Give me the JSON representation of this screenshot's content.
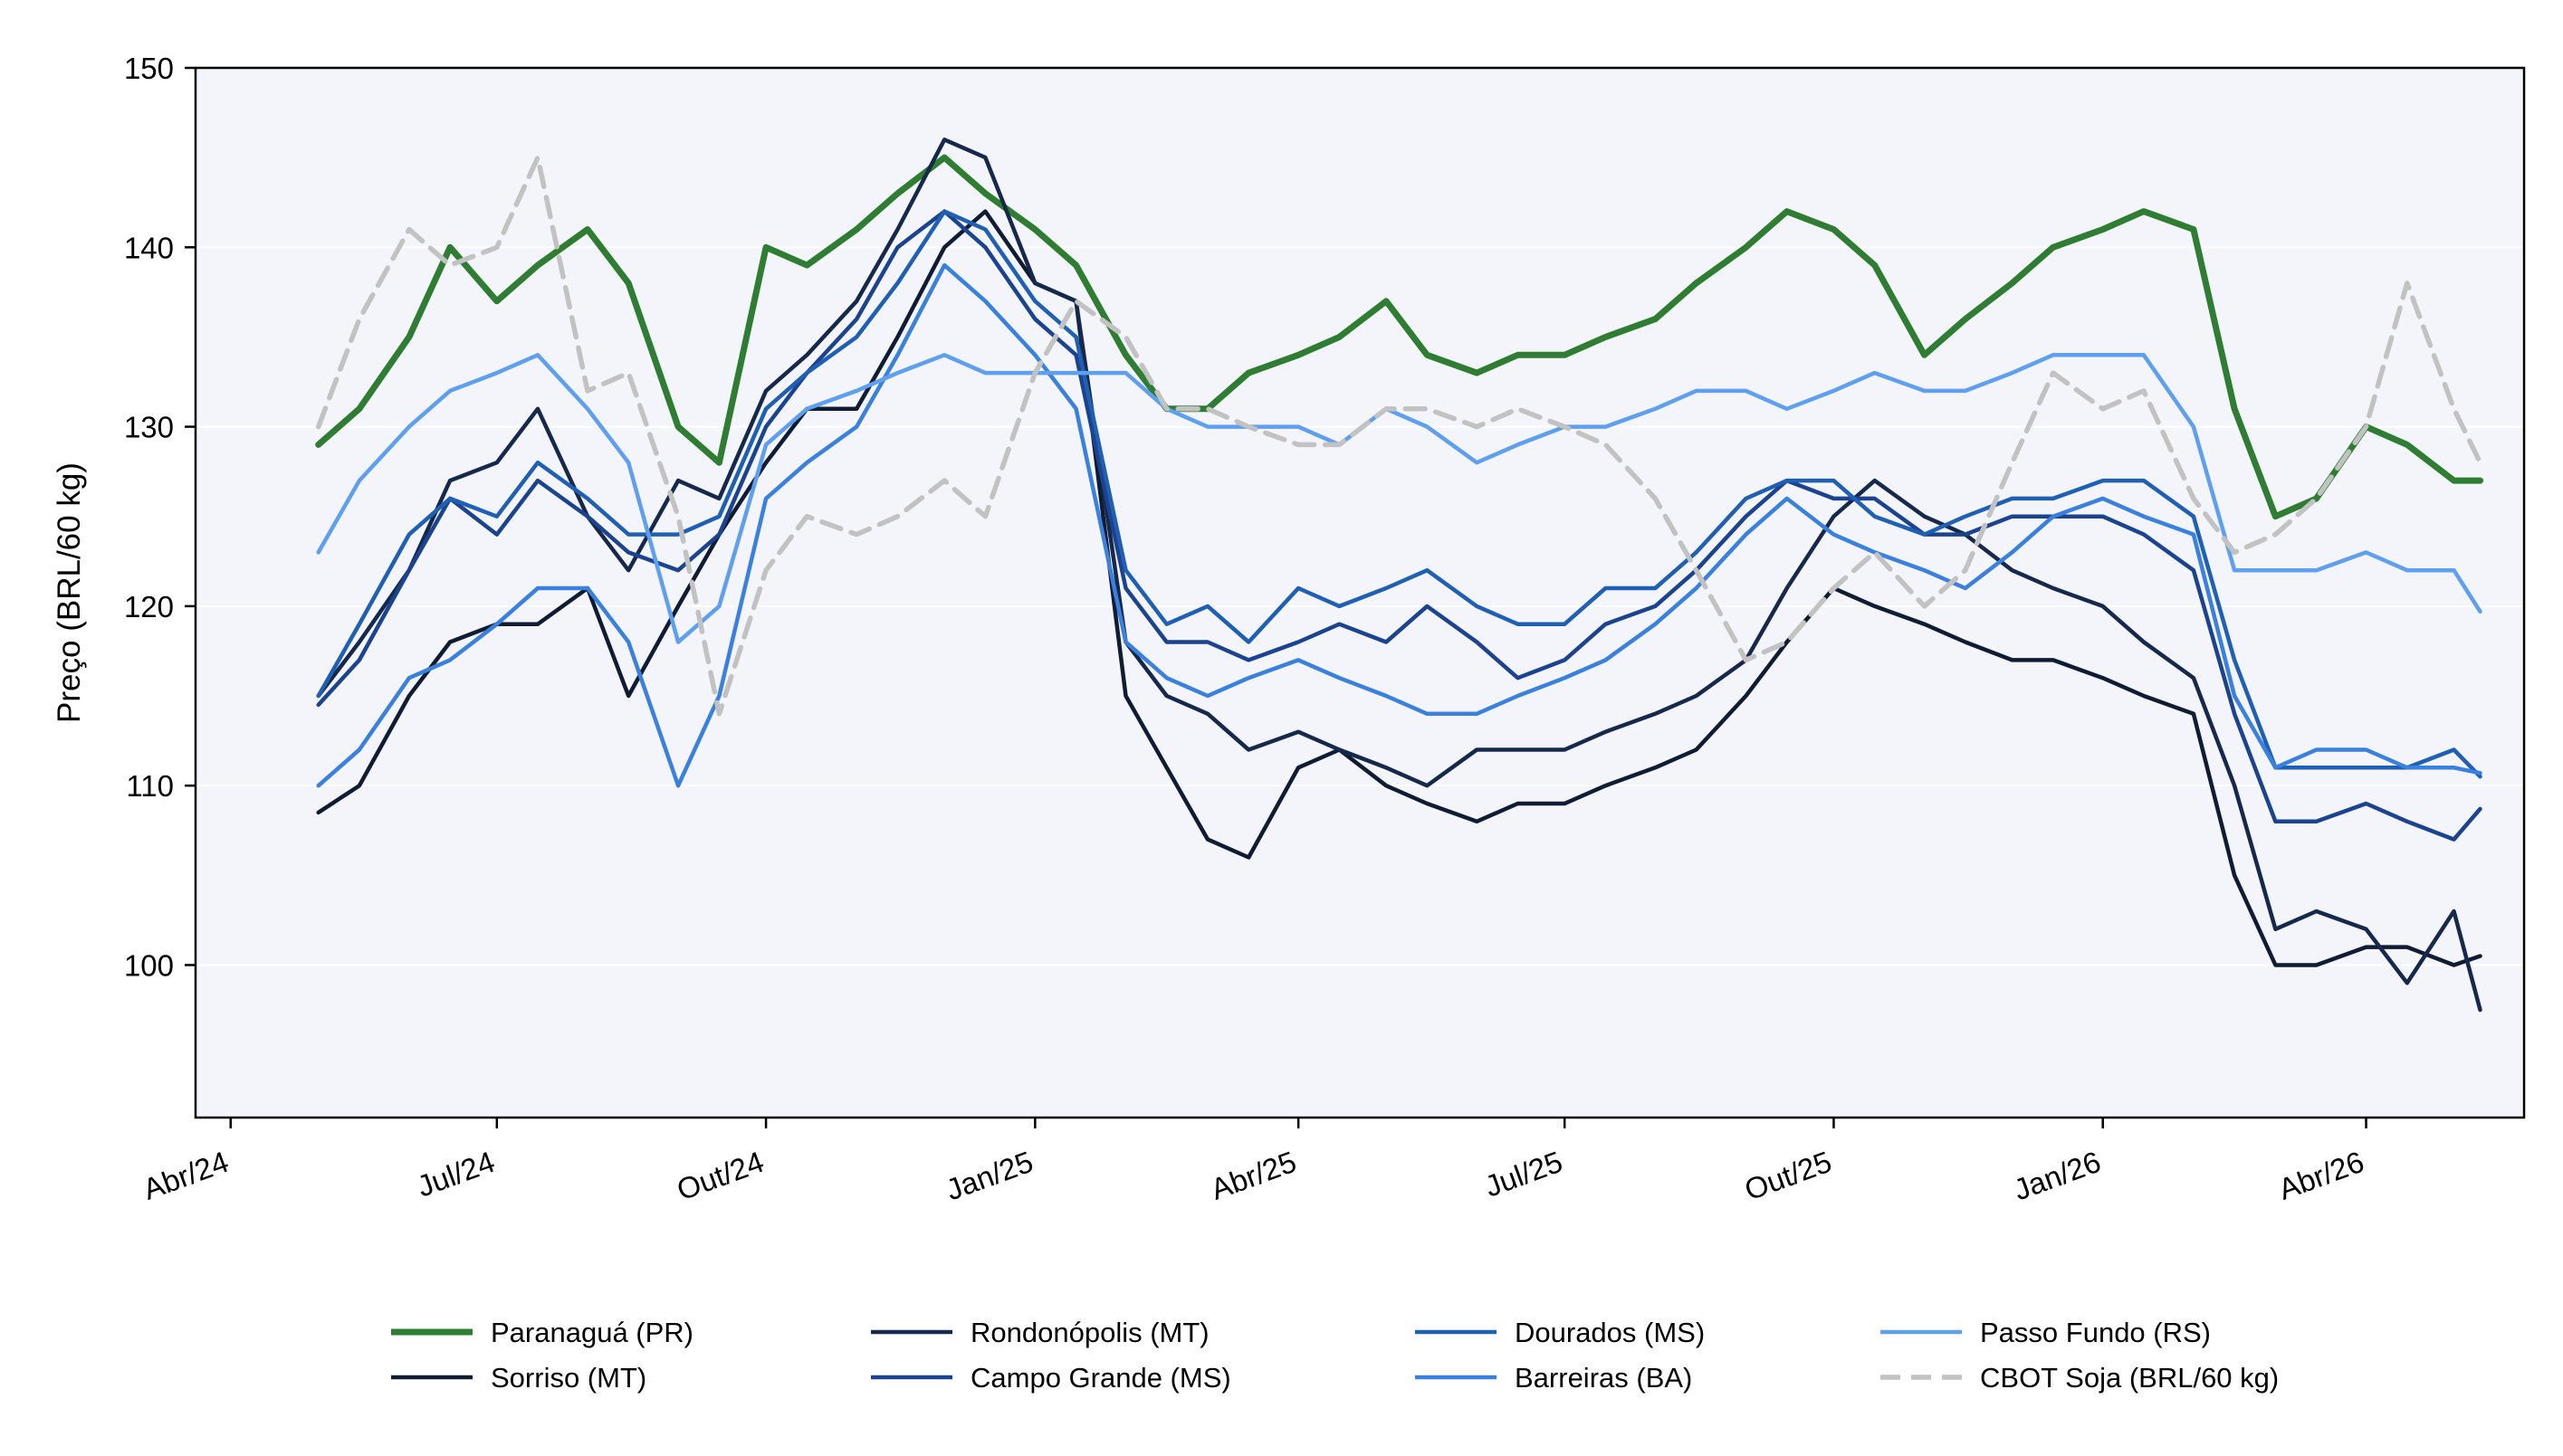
{
  "chart_data": {
    "type": "line",
    "title": "",
    "xlabel": "",
    "ylabel": "Preço (BRL/60 kg)",
    "ylim": [
      91.5,
      150
    ],
    "xlim": [
      "2024-03-20",
      "2026-05-25"
    ],
    "grid": "horizontal",
    "legend_position": "bottom",
    "background_color": "#f3f5fa",
    "y_ticks": [
      100,
      110,
      120,
      130,
      140,
      150
    ],
    "x_ticks": [
      {
        "date": "2024-04-01",
        "label": "Abr/24"
      },
      {
        "date": "2024-07-01",
        "label": "Jul/24"
      },
      {
        "date": "2024-10-01",
        "label": "Out/24"
      },
      {
        "date": "2025-01-01",
        "label": "Jan/25"
      },
      {
        "date": "2025-04-01",
        "label": "Abr/25"
      },
      {
        "date": "2025-07-01",
        "label": "Jul/25"
      },
      {
        "date": "2025-10-01",
        "label": "Out/25"
      },
      {
        "date": "2026-01-01",
        "label": "Jan/26"
      },
      {
        "date": "2026-04-01",
        "label": "Abr/26"
      }
    ],
    "dates": [
      "2024-05-01",
      "2024-05-15",
      "2024-06-01",
      "2024-06-15",
      "2024-07-01",
      "2024-07-15",
      "2024-08-01",
      "2024-08-15",
      "2024-09-01",
      "2024-09-15",
      "2024-10-01",
      "2024-10-15",
      "2024-11-01",
      "2024-11-15",
      "2024-12-01",
      "2024-12-15",
      "2025-01-01",
      "2025-01-15",
      "2025-02-01",
      "2025-02-15",
      "2025-03-01",
      "2025-03-15",
      "2025-04-01",
      "2025-04-15",
      "2025-05-01",
      "2025-05-15",
      "2025-06-01",
      "2025-06-15",
      "2025-07-01",
      "2025-07-15",
      "2025-08-01",
      "2025-08-15",
      "2025-09-01",
      "2025-09-15",
      "2025-10-01",
      "2025-10-15",
      "2025-11-01",
      "2025-11-15",
      "2025-12-01",
      "2025-12-15",
      "2026-01-01",
      "2026-01-15",
      "2026-02-01",
      "2026-02-15",
      "2026-03-01",
      "2026-03-15",
      "2026-04-01",
      "2026-04-15",
      "2026-05-01",
      "2026-05-10"
    ],
    "series": [
      {
        "name": "Paranaguá (PR)",
        "color": "#2e7d32",
        "width": 7,
        "dash": "",
        "values": [
          129,
          131,
          135,
          140,
          137,
          139,
          141,
          138,
          130,
          128,
          140,
          139,
          141,
          143,
          145,
          143,
          141,
          139,
          134,
          131,
          131,
          133,
          134,
          135,
          137,
          134,
          133,
          134,
          134,
          135,
          136,
          138,
          140,
          142,
          141,
          139,
          134,
          136,
          138,
          140,
          141,
          142,
          141,
          131,
          125,
          126,
          130,
          129,
          127,
          127
        ]
      },
      {
        "name": "Sorriso (MT)",
        "color": "#0f1c33",
        "width": 4.5,
        "dash": "",
        "values": [
          108.5,
          110,
          115,
          118,
          119,
          119,
          121,
          115,
          120,
          124,
          128,
          131,
          131,
          135,
          140,
          142,
          138,
          137,
          115,
          111,
          107,
          106,
          111,
          112,
          110,
          109,
          108,
          109,
          109,
          110,
          111,
          112,
          115,
          118,
          121,
          120,
          119,
          118,
          117,
          117,
          116,
          115,
          114,
          105,
          100,
          100,
          101,
          101,
          100,
          100.5
        ]
      },
      {
        "name": "Rondonópolis (MT)",
        "color": "#16294d",
        "width": 4.5,
        "dash": "",
        "values": [
          115,
          118,
          122,
          127,
          128,
          131,
          125,
          122,
          127,
          126,
          132,
          134,
          137,
          141,
          146,
          145,
          138,
          137,
          118,
          115,
          114,
          112,
          113,
          112,
          111,
          110,
          112,
          112,
          112,
          113,
          114,
          115,
          117,
          121,
          125,
          127,
          125,
          124,
          122,
          121,
          120,
          118,
          116,
          110,
          102,
          103,
          102,
          99,
          103,
          97.5
        ]
      },
      {
        "name": "Campo Grande (MS)",
        "color": "#1b438f",
        "width": 4.5,
        "dash": "",
        "values": [
          114.5,
          117,
          122,
          126,
          124,
          127,
          125,
          123,
          122,
          124,
          130,
          133,
          136,
          140,
          142,
          140,
          136,
          134,
          121,
          118,
          118,
          117,
          118,
          119,
          118,
          120,
          118,
          116,
          117,
          119,
          120,
          122,
          125,
          127,
          126,
          126,
          124,
          124,
          125,
          125,
          125,
          124,
          122,
          114,
          108,
          108,
          109,
          108,
          107,
          108.7
        ]
      },
      {
        "name": "Dourados (MS)",
        "color": "#1f5fb4",
        "width": 4.5,
        "dash": "",
        "values": [
          115,
          119,
          124,
          126,
          125,
          128,
          126,
          124,
          124,
          125,
          131,
          133,
          135,
          138,
          142,
          141,
          137,
          135,
          122,
          119,
          120,
          118,
          121,
          120,
          121,
          122,
          120,
          119,
          119,
          121,
          121,
          123,
          126,
          127,
          127,
          125,
          124,
          125,
          126,
          126,
          127,
          127,
          125,
          117,
          111,
          111,
          111,
          111,
          112,
          110.5
        ]
      },
      {
        "name": "Barreiras (BA)",
        "color": "#3a80de",
        "width": 4.5,
        "dash": "",
        "values": [
          110,
          112,
          116,
          117,
          119,
          121,
          121,
          118,
          110,
          115,
          126,
          128,
          130,
          134,
          139,
          137,
          134,
          131,
          118,
          116,
          115,
          116,
          117,
          116,
          115,
          114,
          114,
          115,
          116,
          117,
          119,
          121,
          124,
          126,
          124,
          123,
          122,
          121,
          123,
          125,
          126,
          125,
          124,
          115,
          111,
          112,
          112,
          111,
          111,
          110.7
        ]
      },
      {
        "name": "Passo Fundo (RS)",
        "color": "#5e9ff0",
        "width": 4.5,
        "dash": "",
        "values": [
          123,
          127,
          130,
          132,
          133,
          134,
          131,
          128,
          118,
          120,
          129,
          131,
          132,
          133,
          134,
          133,
          133,
          133,
          133,
          131,
          130,
          130,
          130,
          129,
          131,
          130,
          128,
          129,
          130,
          130,
          131,
          132,
          132,
          131,
          132,
          133,
          132,
          132,
          133,
          134,
          134,
          134,
          130,
          122,
          122,
          122,
          123,
          122,
          122,
          119.7
        ]
      },
      {
        "name": "CBOT Soja (BRL/60 kg)",
        "color": "#c2c2c2",
        "width": 5.5,
        "dash": "22,12",
        "values": [
          130,
          136,
          141,
          139,
          140,
          145,
          132,
          133,
          125,
          114,
          122,
          125,
          124,
          125,
          127,
          125,
          133,
          137,
          135,
          131,
          131,
          130,
          129,
          129,
          131,
          131,
          130,
          131,
          130,
          129,
          126,
          122,
          117,
          118,
          121,
          123,
          120,
          122,
          128,
          133,
          131,
          132,
          126,
          123,
          124,
          126,
          130,
          138,
          131,
          128
        ]
      }
    ]
  }
}
